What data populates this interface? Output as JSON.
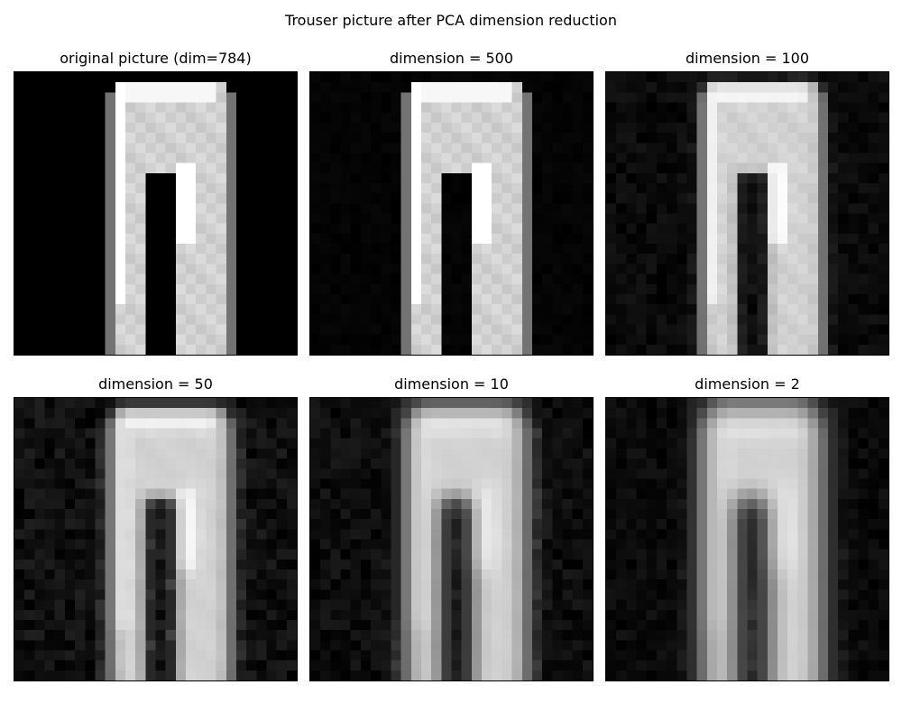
{
  "figure": {
    "title": "Trouser picture after PCA dimension reduction",
    "colormap": "gray",
    "background": "#000000",
    "image_grid": "28x28",
    "panels": [
      {
        "title": "original picture (dim=784)",
        "dim": 784,
        "blur": 0.0,
        "noise": 0.0,
        "fill": 0.0
      },
      {
        "title": "dimension = 500",
        "dim": 500,
        "blur": 0.1,
        "noise": 0.03,
        "fill": 0.0
      },
      {
        "title": "dimension = 100",
        "dim": 100,
        "blur": 0.4,
        "noise": 0.08,
        "fill": 0.05
      },
      {
        "title": "dimension = 50",
        "dim": 50,
        "blur": 0.6,
        "noise": 0.12,
        "fill": 0.1
      },
      {
        "title": "dimension = 10",
        "dim": 10,
        "blur": 0.9,
        "noise": 0.1,
        "fill": 0.25
      },
      {
        "title": "dimension = 2",
        "dim": 2,
        "blur": 1.2,
        "noise": 0.08,
        "fill": 0.4
      }
    ]
  }
}
